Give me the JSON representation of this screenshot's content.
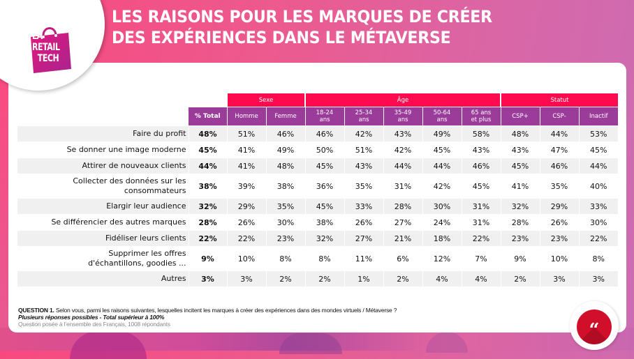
{
  "header": {
    "title_line1": "LES RAISONS POUR LES MARQUES DE CRÉER",
    "title_line2": "DES EXPÉRIENCES DANS LE MÉTAVERSE"
  },
  "logo": {
    "line1": "LA",
    "line2": "RETAIL",
    "line3": "TECH",
    "icon": "shopping-bag-icon"
  },
  "colors": {
    "group_header": "#ff0a4e",
    "sub_header": "#9b3c9a",
    "row_shade": "#f0f0f0",
    "quote_badge": "#d10f2a"
  },
  "chart_data": {
    "type": "table",
    "title": "LES RAISONS POUR LES MARQUES DE CRÉER DES EXPÉRIENCES DANS LE MÉTAVERSE",
    "column_groups": [
      {
        "label": "Sexe",
        "span": 2
      },
      {
        "label": "Âge",
        "span": 5
      },
      {
        "label": "Statut",
        "span": 3
      }
    ],
    "columns": [
      "% Total",
      "Homme",
      "Femme",
      "18-24 ans",
      "25-34 ans",
      "35-49 ans",
      "50-64 ans",
      "65 ans et plus",
      "CSP+",
      "CSP-",
      "Inactif"
    ],
    "column_labels": [
      {
        "l1": "% Total",
        "l2": ""
      },
      {
        "l1": "Homme",
        "l2": ""
      },
      {
        "l1": "Femme",
        "l2": ""
      },
      {
        "l1": "18-24",
        "l2": "ans"
      },
      {
        "l1": "25-34",
        "l2": "ans"
      },
      {
        "l1": "35-49",
        "l2": "ans"
      },
      {
        "l1": "50-64",
        "l2": "ans"
      },
      {
        "l1": "65 ans",
        "l2": "et plus"
      },
      {
        "l1": "CSP+",
        "l2": ""
      },
      {
        "l1": "CSP-",
        "l2": ""
      },
      {
        "l1": "Inactif",
        "l2": ""
      }
    ],
    "rows": [
      {
        "label": "Faire du profit",
        "values": [
          "48%",
          "51%",
          "46%",
          "46%",
          "42%",
          "43%",
          "49%",
          "58%",
          "48%",
          "44%",
          "53%"
        ]
      },
      {
        "label": "Se donner une image moderne",
        "values": [
          "45%",
          "41%",
          "49%",
          "50%",
          "51%",
          "42%",
          "45%",
          "43%",
          "43%",
          "47%",
          "45%"
        ]
      },
      {
        "label": "Attirer de nouveaux clients",
        "values": [
          "44%",
          "41%",
          "48%",
          "45%",
          "43%",
          "44%",
          "44%",
          "46%",
          "45%",
          "46%",
          "44%"
        ]
      },
      {
        "label": "Collecter des données sur les consommateurs",
        "values": [
          "38%",
          "39%",
          "38%",
          "36%",
          "35%",
          "31%",
          "42%",
          "45%",
          "41%",
          "35%",
          "40%"
        ]
      },
      {
        "label": "Elargir leur audience",
        "values": [
          "32%",
          "29%",
          "35%",
          "45%",
          "33%",
          "28%",
          "30%",
          "31%",
          "32%",
          "29%",
          "33%"
        ]
      },
      {
        "label": "Se différencier des autres marques",
        "values": [
          "28%",
          "26%",
          "30%",
          "38%",
          "26%",
          "27%",
          "24%",
          "31%",
          "28%",
          "26%",
          "30%"
        ]
      },
      {
        "label": "Fidéliser leurs clients",
        "values": [
          "22%",
          "22%",
          "23%",
          "32%",
          "27%",
          "21%",
          "18%",
          "22%",
          "23%",
          "23%",
          "22%"
        ]
      },
      {
        "label": "Supprimer les offres d'échantillons, goodies ...",
        "values": [
          "9%",
          "10%",
          "8%",
          "8%",
          "11%",
          "6%",
          "12%",
          "7%",
          "9%",
          "10%",
          "8%"
        ]
      },
      {
        "label": "Autres",
        "values": [
          "3%",
          "3%",
          "2%",
          "2%",
          "1%",
          "2%",
          "4%",
          "4%",
          "2%",
          "3%",
          "3%"
        ]
      }
    ]
  },
  "footer": {
    "question_label": "QUESTION 1.",
    "question_text": " Selon vous, parmi les raisons suivantes, lesquelles incitent les marques à créer des expériences dans des mondes virtuels / Métaverse ?",
    "note": "Plusieurs réponses possibles - Total supérieur à 100%",
    "base": "Question posée à l’ensemble des Français, 1008 répondants"
  },
  "quote_icon": {
    "icon": "quote-icon",
    "glyph": "“"
  }
}
